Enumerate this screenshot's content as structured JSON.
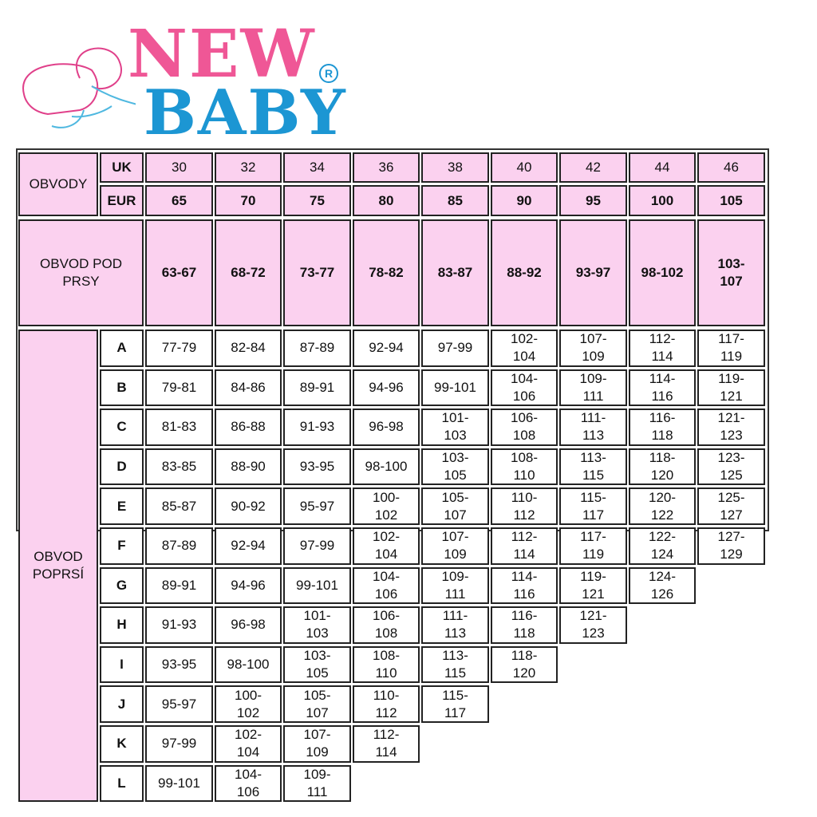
{
  "logo": {
    "line1": "NEW",
    "line2": "BABY",
    "mark": "R",
    "colors": {
      "new": "#ef5796",
      "baby": "#1c96d3"
    }
  },
  "colors": {
    "header_bg": "#fbd1ef",
    "body_bg": "#ffffff",
    "border": "#222222"
  },
  "table": {
    "obvody_label": "OBVODY",
    "uk_label": "UK",
    "eur_label": "EUR",
    "uk_sizes": [
      "30",
      "32",
      "34",
      "36",
      "38",
      "40",
      "42",
      "44",
      "46"
    ],
    "eur_sizes": [
      "65",
      "70",
      "75",
      "80",
      "85",
      "90",
      "95",
      "100",
      "105"
    ],
    "underbust_label": "OBVOD POD\nPRSY",
    "underbust": [
      "63-67",
      "68-72",
      "73-77",
      "78-82",
      "83-87",
      "88-92",
      "93-97",
      "98-102",
      "103-\n107"
    ],
    "bust_label": "OBVOD\nPOPRSÍ",
    "cups": [
      {
        "cup": "A",
        "values": [
          "77-79",
          "82-84",
          "87-89",
          "92-94",
          "97-99",
          "102-\n104",
          "107-\n109",
          "112-\n114",
          "117-\n119"
        ]
      },
      {
        "cup": "B",
        "values": [
          "79-81",
          "84-86",
          "89-91",
          "94-96",
          "99-101",
          "104-\n106",
          "109-\n111",
          "114-\n116",
          "119-\n121"
        ]
      },
      {
        "cup": "C",
        "values": [
          "81-83",
          "86-88",
          "91-93",
          "96-98",
          "101-\n103",
          "106-\n108",
          "111-\n113",
          "116-\n118",
          "121-\n123"
        ]
      },
      {
        "cup": "D",
        "values": [
          "83-85",
          "88-90",
          "93-95",
          "98-100",
          "103-\n105",
          "108-\n110",
          "113-\n115",
          "118-\n120",
          "123-\n125"
        ]
      },
      {
        "cup": "E",
        "values": [
          "85-87",
          "90-92",
          "95-97",
          "100-\n102",
          "105-\n107",
          "110-\n112",
          "115-\n117",
          "120-\n122",
          "125-\n127"
        ]
      },
      {
        "cup": "F",
        "values": [
          "87-89",
          "92-94",
          "97-99",
          "102-\n104",
          "107-\n109",
          "112-\n114",
          "117-\n119",
          "122-\n124",
          "127-\n129"
        ]
      },
      {
        "cup": "G",
        "values": [
          "89-91",
          "94-96",
          "99-101",
          "104-\n106",
          "109-\n111",
          "114-\n116",
          "119-\n121",
          "124-\n126"
        ]
      },
      {
        "cup": "H",
        "values": [
          "91-93",
          "96-98",
          "101-\n103",
          "106-\n108",
          "111-\n113",
          "116-\n118",
          "121-\n123"
        ]
      },
      {
        "cup": "I",
        "values": [
          "93-95",
          "98-100",
          "103-\n105",
          "108-\n110",
          "113-\n115",
          "118-\n120"
        ]
      },
      {
        "cup": "J",
        "values": [
          "95-97",
          "100-\n102",
          "105-\n107",
          "110-\n112",
          "115-\n117"
        ]
      },
      {
        "cup": "K",
        "values": [
          "97-99",
          "102-\n104",
          "107-\n109",
          "112-\n114"
        ]
      },
      {
        "cup": "L",
        "values": [
          "99-101",
          "104-\n106",
          "109-\n111"
        ]
      }
    ]
  }
}
